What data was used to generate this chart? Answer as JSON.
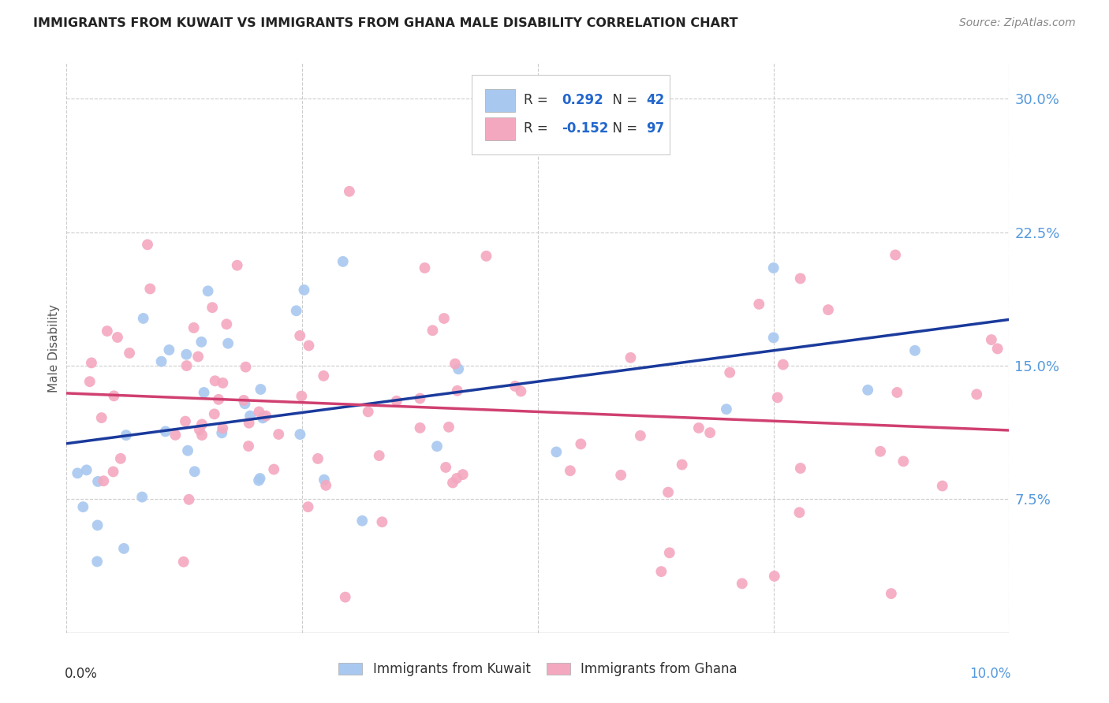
{
  "title": "IMMIGRANTS FROM KUWAIT VS IMMIGRANTS FROM GHANA MALE DISABILITY CORRELATION CHART",
  "source": "Source: ZipAtlas.com",
  "ylabel": "Male Disability",
  "ytick_values": [
    0.075,
    0.15,
    0.225,
    0.3
  ],
  "xlim": [
    0.0,
    0.1
  ],
  "ylim": [
    0.0,
    0.32
  ],
  "kuwait_color": "#a8c8f0",
  "ghana_color": "#f4a8c0",
  "kuwait_line_color": "#1a3a9c",
  "ghana_line_color": "#d04070",
  "kuwait_R": 0.292,
  "kuwait_N": 42,
  "ghana_R": -0.152,
  "ghana_N": 97,
  "background_color": "#ffffff",
  "grid_color": "#cccccc",
  "right_label_color": "#5599dd",
  "title_color": "#222222",
  "source_color": "#888888",
  "legend_text_color": "#333333",
  "legend_value_color": "#2266cc"
}
